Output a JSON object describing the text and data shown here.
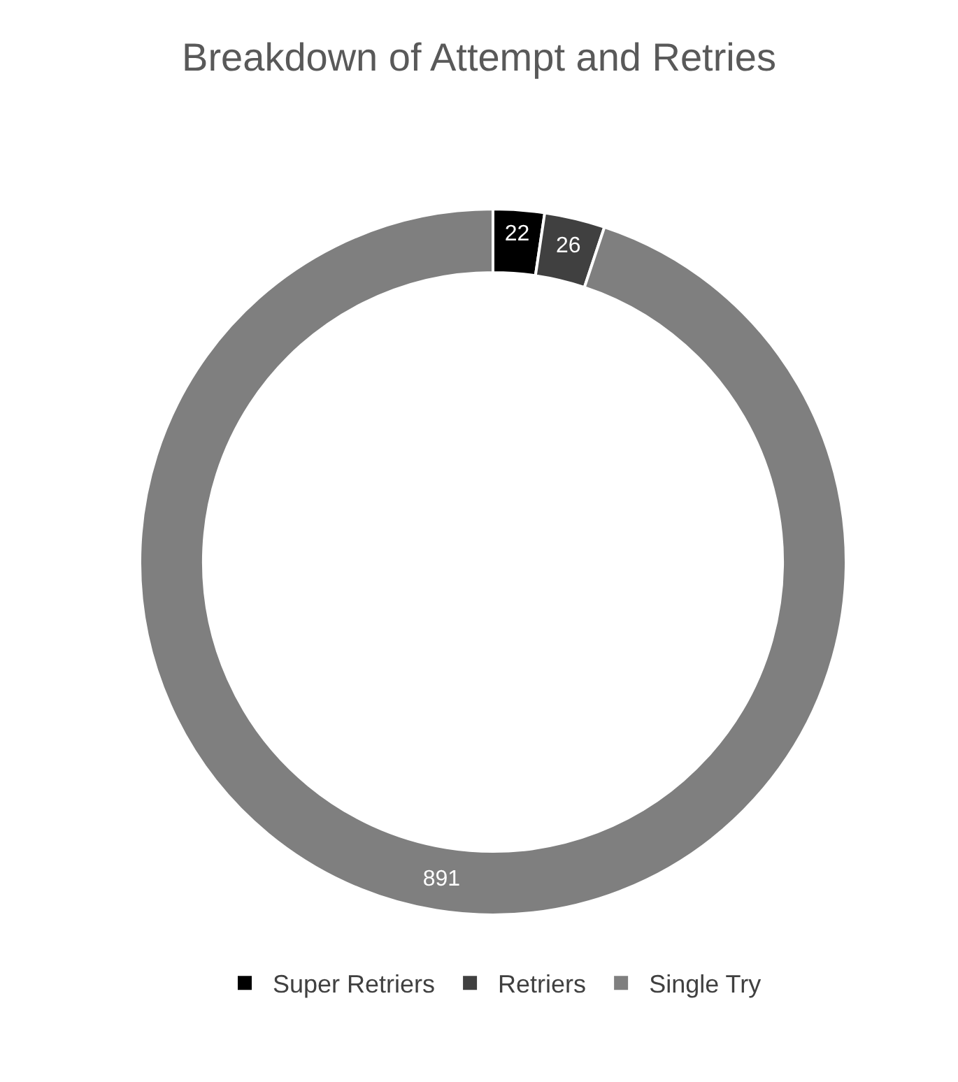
{
  "chart_data": {
    "type": "donut",
    "title": "Breakdown of Attempt and Retries",
    "categories": [
      "Super Retriers",
      "Retriers",
      "Single Try"
    ],
    "values": [
      22,
      26,
      891
    ],
    "colors": [
      "#000000",
      "#404040",
      "#7f7f7f"
    ],
    "data_labels": true,
    "legend": "bottom"
  }
}
